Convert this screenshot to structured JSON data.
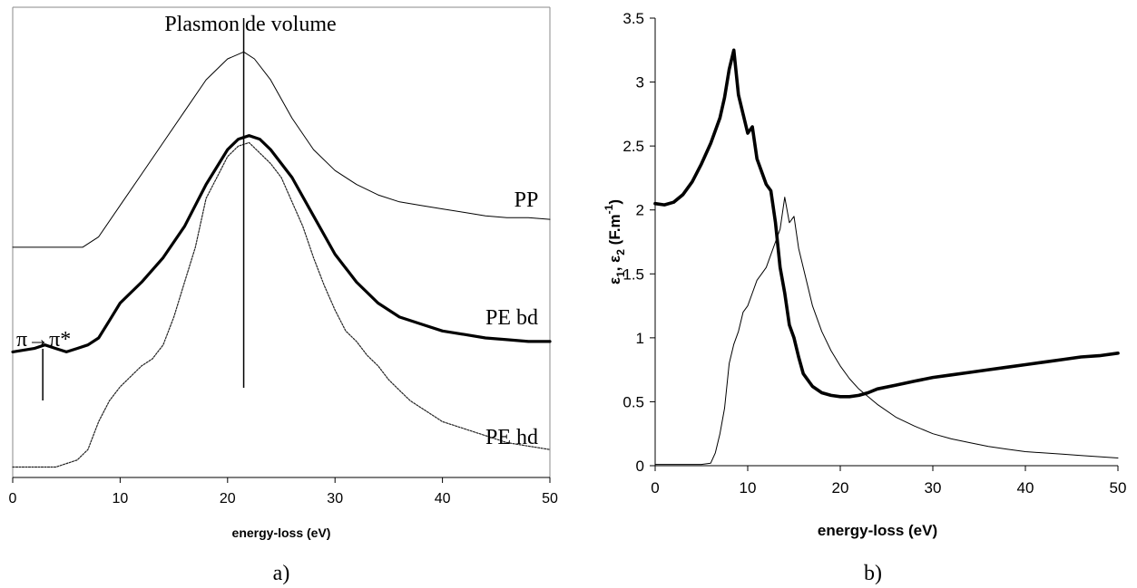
{
  "chart_data": [
    {
      "type": "line",
      "panel_label": "a)",
      "xlabel": "energy-loss (eV)",
      "ylabel": "",
      "xlim": [
        0,
        50
      ],
      "xticks": [
        0,
        10,
        20,
        30,
        40,
        50
      ],
      "yaxis": "none",
      "annotations": {
        "plasmon_line_label": "Plasmon de volume",
        "plasmon_line_x": 21.5,
        "pi_line_label": "π→π*",
        "pi_line_x": 2.8
      },
      "series": [
        {
          "name": "PP",
          "style": "thin",
          "x": [
            0,
            6.5,
            8,
            10,
            12,
            14,
            16,
            18,
            20,
            21.5,
            22.5,
            24,
            26,
            28,
            30,
            32,
            34,
            36,
            38,
            40,
            42,
            44,
            46,
            48,
            50
          ],
          "y": [
            0.66,
            0.66,
            0.69,
            0.78,
            0.87,
            0.96,
            1.05,
            1.14,
            1.2,
            1.22,
            1.2,
            1.14,
            1.03,
            0.94,
            0.88,
            0.84,
            0.81,
            0.79,
            0.78,
            0.77,
            0.76,
            0.75,
            0.745,
            0.745,
            0.74
          ]
        },
        {
          "name": "PE bd",
          "style": "thick",
          "x": [
            0,
            2,
            3,
            4,
            5,
            6,
            7,
            8,
            9,
            10,
            12,
            14,
            16,
            18,
            20,
            21,
            22,
            23,
            24,
            26,
            28,
            30,
            32,
            34,
            36,
            38,
            40,
            42,
            44,
            46,
            48,
            50
          ],
          "y": [
            0.36,
            0.37,
            0.38,
            0.37,
            0.36,
            0.37,
            0.38,
            0.4,
            0.45,
            0.5,
            0.56,
            0.63,
            0.72,
            0.84,
            0.94,
            0.97,
            0.98,
            0.97,
            0.94,
            0.86,
            0.75,
            0.64,
            0.56,
            0.5,
            0.46,
            0.44,
            0.42,
            0.41,
            0.4,
            0.395,
            0.39,
            0.39
          ]
        },
        {
          "name": "PE hd",
          "style": "dotted",
          "x": [
            0,
            4,
            6,
            7,
            8,
            9,
            10,
            11,
            12,
            13,
            14,
            15,
            16,
            17,
            18,
            19,
            20,
            21,
            22,
            23,
            24,
            25,
            26,
            27,
            28,
            29,
            30,
            31,
            32,
            33,
            34,
            35,
            36,
            37,
            38,
            39,
            40,
            42,
            44,
            46,
            48,
            50
          ],
          "y": [
            0.03,
            0.03,
            0.05,
            0.08,
            0.16,
            0.22,
            0.26,
            0.29,
            0.32,
            0.34,
            0.38,
            0.46,
            0.56,
            0.66,
            0.8,
            0.86,
            0.92,
            0.95,
            0.96,
            0.93,
            0.9,
            0.86,
            0.79,
            0.72,
            0.63,
            0.55,
            0.48,
            0.42,
            0.39,
            0.35,
            0.32,
            0.28,
            0.25,
            0.22,
            0.2,
            0.18,
            0.16,
            0.14,
            0.12,
            0.1,
            0.09,
            0.08
          ]
        }
      ]
    },
    {
      "type": "line",
      "panel_label": "b)",
      "xlabel": "energy-loss (eV)",
      "ylabel": "ε1, ε2 (F.m-1)",
      "ylabel_parts": {
        "eps": "ε",
        "sub1": "1",
        "sep": ", ",
        "sub2": "2",
        "unit": " (F.m",
        "sup": "-1",
        "close": ")"
      },
      "xlim": [
        0,
        50
      ],
      "ylim": [
        0,
        3.5
      ],
      "xticks": [
        0,
        10,
        20,
        30,
        40,
        50
      ],
      "yticks": [
        0,
        0.5,
        1,
        1.5,
        2,
        2.5,
        3,
        3.5
      ],
      "series": [
        {
          "style": "thick",
          "x": [
            0,
            1,
            2,
            3,
            4,
            5,
            6,
            7,
            7.5,
            8,
            8.5,
            9,
            9.5,
            10,
            10.5,
            11,
            11.5,
            12,
            12.5,
            13,
            13.5,
            14,
            14.5,
            15,
            15.5,
            16,
            17,
            18,
            19,
            20,
            21,
            22,
            23,
            24,
            26,
            28,
            30,
            32,
            34,
            36,
            38,
            40,
            42,
            44,
            46,
            48,
            50
          ],
          "y": [
            2.05,
            2.04,
            2.06,
            2.12,
            2.22,
            2.36,
            2.52,
            2.72,
            2.88,
            3.1,
            3.25,
            2.9,
            2.75,
            2.6,
            2.65,
            2.4,
            2.3,
            2.2,
            2.15,
            1.9,
            1.55,
            1.35,
            1.1,
            1.0,
            0.85,
            0.72,
            0.62,
            0.57,
            0.55,
            0.54,
            0.54,
            0.55,
            0.57,
            0.6,
            0.63,
            0.66,
            0.69,
            0.71,
            0.73,
            0.75,
            0.77,
            0.79,
            0.81,
            0.83,
            0.85,
            0.86,
            0.88
          ]
        },
        {
          "style": "thin",
          "x": [
            0,
            2,
            4,
            5,
            6,
            6.5,
            7,
            7.5,
            8,
            8.5,
            9,
            9.5,
            10,
            10.5,
            11,
            11.5,
            12,
            12.5,
            13,
            13.5,
            14,
            14.5,
            15,
            15.5,
            16,
            16.5,
            17,
            18,
            19,
            20,
            21,
            22,
            24,
            26,
            28,
            30,
            32,
            34,
            36,
            38,
            40,
            42,
            44,
            46,
            48,
            50
          ],
          "y": [
            0.01,
            0.01,
            0.01,
            0.01,
            0.02,
            0.1,
            0.25,
            0.45,
            0.8,
            0.95,
            1.05,
            1.2,
            1.25,
            1.35,
            1.45,
            1.5,
            1.55,
            1.65,
            1.75,
            1.85,
            2.1,
            1.9,
            1.95,
            1.7,
            1.55,
            1.4,
            1.25,
            1.05,
            0.9,
            0.78,
            0.68,
            0.6,
            0.48,
            0.38,
            0.31,
            0.25,
            0.21,
            0.18,
            0.15,
            0.13,
            0.11,
            0.1,
            0.09,
            0.08,
            0.07,
            0.06
          ]
        }
      ]
    }
  ]
}
